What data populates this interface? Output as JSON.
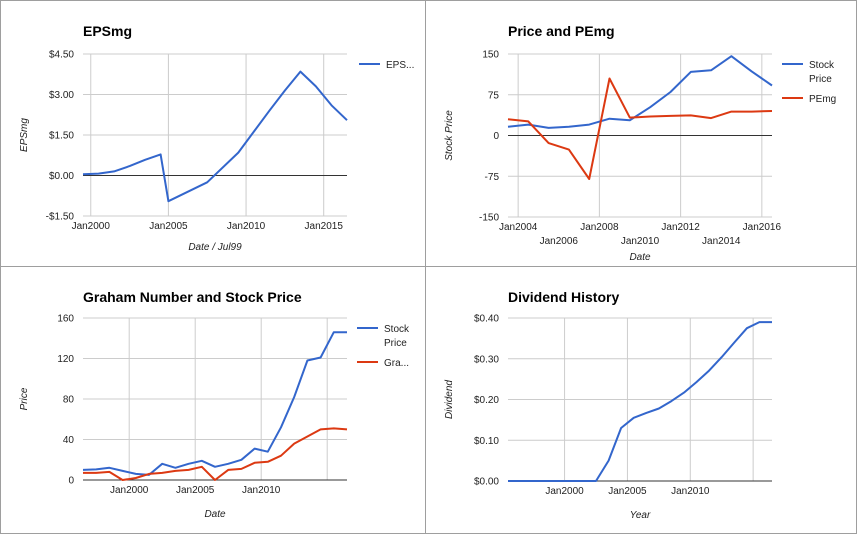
{
  "chart_data": [
    {
      "id": "eps",
      "type": "line",
      "title": "EPSmg",
      "ylabel": "EPSmg",
      "xlabel": "Date / Jul99",
      "ylim": [
        -1.5,
        4.5
      ],
      "xlim": [
        1999.5,
        2016.5
      ],
      "y_ticks": [
        {
          "v": 4.5,
          "label": "$4.50"
        },
        {
          "v": 3.0,
          "label": "$3.00"
        },
        {
          "v": 1.5,
          "label": "$1.50"
        },
        {
          "v": 0.0,
          "label": "$0.00"
        },
        {
          "v": -1.5,
          "label": "-$1.50"
        }
      ],
      "x_ticks": [
        {
          "v": 2000,
          "label": "Jan2000"
        },
        {
          "v": 2005,
          "label": "Jan2005"
        },
        {
          "v": 2010,
          "label": "Jan2010"
        },
        {
          "v": 2015,
          "label": "Jan2015"
        }
      ],
      "x_gridlines": [
        2000,
        2005,
        2010,
        2015
      ],
      "baseline": 0,
      "legend": "right",
      "series": [
        {
          "name": "EPS...",
          "color": "#3366cc",
          "x": [
            1999.5,
            2000.5,
            2001.5,
            2002.5,
            2003.5,
            2004.5,
            2005.0,
            2007.5,
            2009.5,
            2011.5,
            2012.5,
            2013.5,
            2014.5,
            2015.5,
            2016.5
          ],
          "y": [
            0.05,
            0.07,
            0.15,
            0.35,
            0.58,
            0.78,
            -0.95,
            -0.25,
            0.85,
            2.4,
            3.15,
            3.85,
            3.3,
            2.6,
            2.05
          ]
        }
      ]
    },
    {
      "id": "price-pe",
      "type": "line",
      "title": "Price and PEmg",
      "ylabel": "Stock Price",
      "xlabel": "Date",
      "ylim": [
        -150,
        150
      ],
      "xlim": [
        2003.5,
        2016.5
      ],
      "y_ticks": [
        {
          "v": 150,
          "label": "150"
        },
        {
          "v": 75,
          "label": "75"
        },
        {
          "v": 0,
          "label": "0"
        },
        {
          "v": -75,
          "label": "-75"
        },
        {
          "v": -150,
          "label": "-150"
        }
      ],
      "x_ticks": [
        {
          "v": 2004,
          "label": "Jan2004",
          "row": 0
        },
        {
          "v": 2006,
          "label": "Jan2006",
          "row": 1
        },
        {
          "v": 2008,
          "label": "Jan2008",
          "row": 0
        },
        {
          "v": 2010,
          "label": "Jan2010",
          "row": 1
        },
        {
          "v": 2012,
          "label": "Jan2012",
          "row": 0
        },
        {
          "v": 2014,
          "label": "Jan2014",
          "row": 1
        },
        {
          "v": 2016,
          "label": "Jan2016",
          "row": 0
        }
      ],
      "x_gridlines": [
        2004,
        2008,
        2012,
        2016
      ],
      "baseline": 0,
      "legend": "right",
      "series": [
        {
          "name": "Stock Price",
          "color": "#3366cc",
          "x": [
            2003.5,
            2004.5,
            2005.5,
            2006.5,
            2007.5,
            2008.5,
            2009.5,
            2010.5,
            2011.5,
            2012.5,
            2013.5,
            2014.5,
            2015.5,
            2016.5
          ],
          "y": [
            16,
            20,
            14,
            16,
            20,
            31,
            28,
            52,
            80,
            117,
            120,
            146,
            118,
            92
          ]
        },
        {
          "name": "PEmg",
          "color": "#dc3912",
          "x": [
            2003.5,
            2004.5,
            2005.5,
            2006.5,
            2007.5,
            2008.5,
            2009.5,
            2010.5,
            2011.5,
            2012.5,
            2013.5,
            2014.5,
            2015.5,
            2016.5
          ],
          "y": [
            30,
            26,
            -14,
            -26,
            -80,
            105,
            33,
            35,
            36,
            37,
            32,
            44,
            44,
            45
          ]
        }
      ]
    },
    {
      "id": "graham",
      "type": "line",
      "title": "Graham Number and Stock Price",
      "ylabel": "Price",
      "xlabel": "Date",
      "ylim": [
        0,
        160
      ],
      "xlim": [
        1996.5,
        2016.5
      ],
      "y_ticks": [
        {
          "v": 160,
          "label": "160"
        },
        {
          "v": 120,
          "label": "120"
        },
        {
          "v": 80,
          "label": "80"
        },
        {
          "v": 40,
          "label": "40"
        },
        {
          "v": 0,
          "label": "0"
        }
      ],
      "x_ticks": [
        {
          "v": 2000,
          "label": "Jan2000"
        },
        {
          "v": 2005,
          "label": "Jan2005"
        },
        {
          "v": 2010,
          "label": "Jan2010"
        }
      ],
      "x_gridlines": [
        2000,
        2005,
        2010,
        2015
      ],
      "baseline": 0,
      "legend": "right",
      "series": [
        {
          "name": "Stock Price",
          "color": "#3366cc",
          "x": [
            1996.5,
            1997.5,
            1998.5,
            1999.5,
            2000.5,
            2001.5,
            2002.5,
            2003.5,
            2004.5,
            2005.5,
            2006.5,
            2007.5,
            2008.5,
            2009.5,
            2010.5,
            2011.5,
            2012.5,
            2013.5,
            2014.5,
            2015.5,
            2016.5
          ],
          "y": [
            10,
            10.5,
            12,
            9,
            6,
            5,
            16,
            12,
            16,
            19,
            13,
            16,
            20,
            31,
            28,
            52,
            82,
            118,
            121,
            146,
            146
          ]
        },
        {
          "name": "Gra...",
          "color": "#dc3912",
          "x": [
            1996.5,
            1997.5,
            1998.5,
            1999.5,
            2000.5,
            2001.5,
            2002.5,
            2003.5,
            2004.5,
            2005.5,
            2006.5,
            2007.5,
            2008.5,
            2009.5,
            2010.5,
            2011.5,
            2012.5,
            2013.5,
            2014.5,
            2015.5,
            2016.5
          ],
          "y": [
            7,
            7,
            8,
            0,
            2,
            6,
            7,
            9,
            10,
            13,
            0,
            10,
            11,
            17,
            18,
            24,
            36,
            43,
            50,
            51,
            50
          ]
        }
      ]
    },
    {
      "id": "dividend",
      "type": "line",
      "title": "Dividend History",
      "ylabel": "Dividend",
      "xlabel": "Year",
      "ylim": [
        0,
        0.4
      ],
      "xlim": [
        1995.5,
        2016.5
      ],
      "y_ticks": [
        {
          "v": 0.4,
          "label": "$0.40"
        },
        {
          "v": 0.3,
          "label": "$0.30"
        },
        {
          "v": 0.2,
          "label": "$0.20"
        },
        {
          "v": 0.1,
          "label": "$0.10"
        },
        {
          "v": 0.0,
          "label": "$0.00"
        }
      ],
      "x_ticks": [
        {
          "v": 2000,
          "label": "Jan2000"
        },
        {
          "v": 2005,
          "label": "Jan2005"
        },
        {
          "v": 2010,
          "label": "Jan2010"
        }
      ],
      "x_gridlines": [
        2000,
        2005,
        2010,
        2015
      ],
      "baseline": 0,
      "legend": "none",
      "series": [
        {
          "name": "",
          "color": "#3366cc",
          "x": [
            1995.5,
            2002.5,
            2003.5,
            2004.5,
            2005.5,
            2006.5,
            2007.5,
            2008.5,
            2009.5,
            2010.5,
            2011.5,
            2012.5,
            2013.5,
            2014.5,
            2015.5,
            2016.5
          ],
          "y": [
            0,
            0,
            0.05,
            0.13,
            0.155,
            0.167,
            0.178,
            0.196,
            0.217,
            0.243,
            0.271,
            0.304,
            0.34,
            0.375,
            0.39,
            0.39
          ]
        }
      ]
    }
  ]
}
